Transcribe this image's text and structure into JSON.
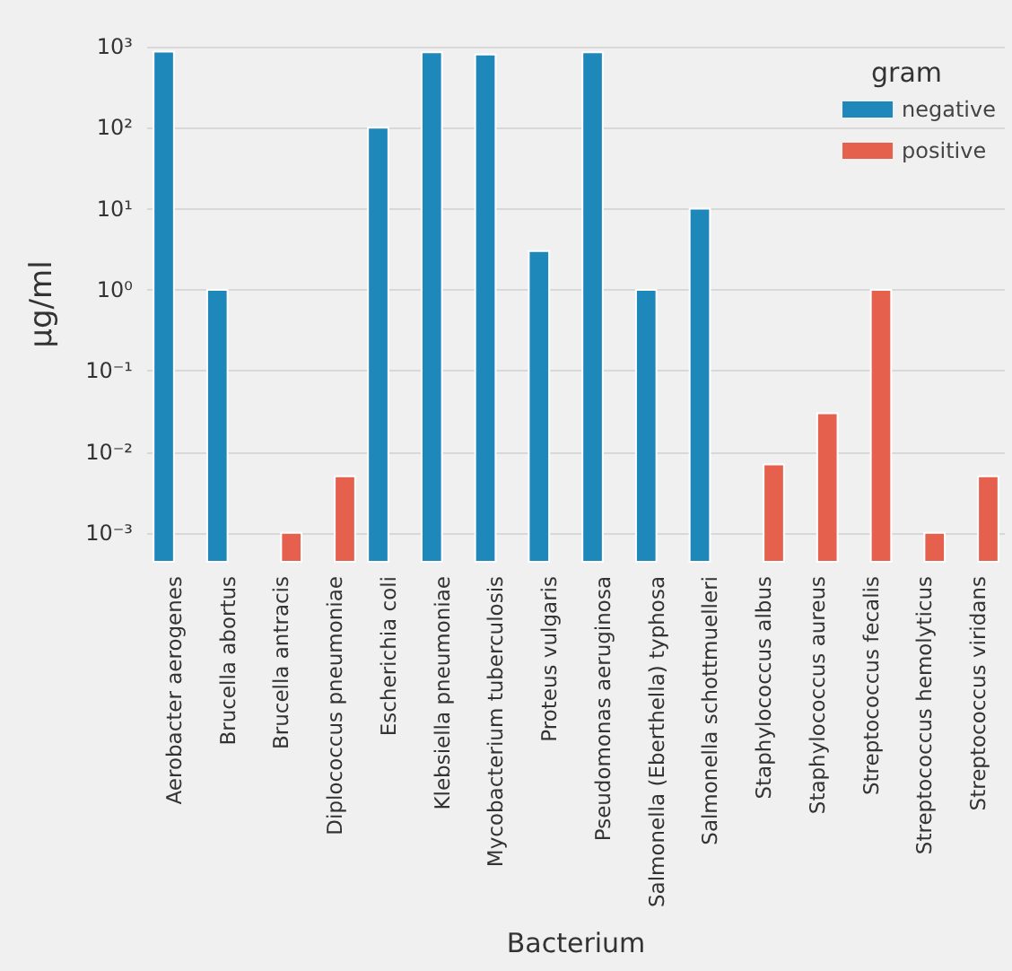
{
  "chart_data": {
    "type": "bar",
    "xlabel": "Bacterium",
    "ylabel": "μg/ml",
    "legend_title": "gram",
    "categories": [
      "Aerobacter aerogenes",
      "Brucella abortus",
      "Brucella antracis",
      "Diplococcus pneumoniae",
      "Escherichia coli",
      "Klebsiella pneumoniae",
      "Mycobacterium tuberculosis",
      "Proteus vulgaris",
      "Pseudomonas aeruginosa",
      "Salmonella (Eberthella) typhosa",
      "Salmonella schottmuelleri",
      "Staphylococcus albus",
      "Staphylococcus aureus",
      "Streptococcus fecalis",
      "Streptococcus hemolyticus",
      "Streptococcus viridans"
    ],
    "series": [
      {
        "name": "negative",
        "color": "#1f88bb",
        "values": [
          870,
          1,
          null,
          null,
          100,
          850,
          800,
          3,
          850,
          1,
          10,
          null,
          null,
          null,
          null,
          null
        ]
      },
      {
        "name": "positive",
        "color": "#e5604d",
        "values": [
          null,
          null,
          0.001,
          0.005,
          null,
          null,
          null,
          null,
          null,
          null,
          null,
          0.007,
          0.03,
          1,
          0.001,
          0.005
        ]
      }
    ],
    "log": "y",
    "ylim": [
      0.00044,
      1000
    ],
    "yticks": [
      {
        "value": 0.001,
        "label": "10⁻³"
      },
      {
        "value": 0.01,
        "label": "10⁻²"
      },
      {
        "value": 0.1,
        "label": "10⁻¹"
      },
      {
        "value": 1,
        "label": "10⁰"
      },
      {
        "value": 10,
        "label": "10¹"
      },
      {
        "value": 100,
        "label": "10²"
      },
      {
        "value": 1000,
        "label": "10³"
      }
    ],
    "grid": "y",
    "legend": "top right"
  }
}
